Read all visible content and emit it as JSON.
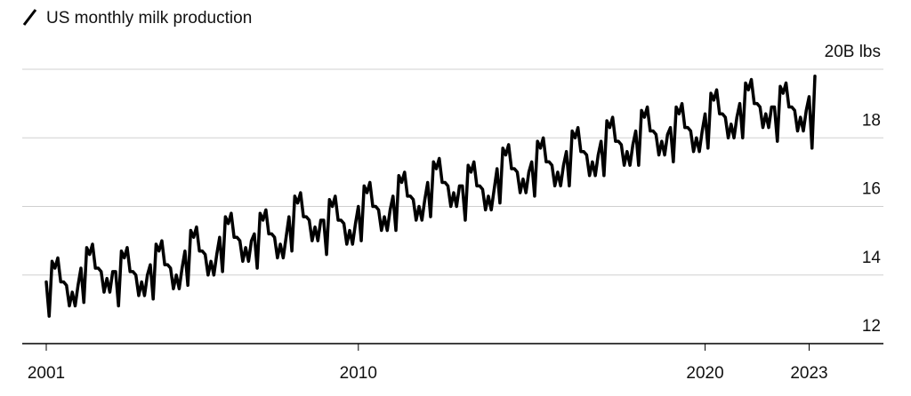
{
  "chart_data": {
    "type": "line",
    "title": "US monthly milk production",
    "color": "#000000",
    "grid": true,
    "ylim": [
      12,
      20
    ],
    "yticks": [
      12,
      14,
      16,
      18,
      {
        "value": 20,
        "label": "20B lbs"
      }
    ],
    "categories": [
      "2001",
      null,
      null,
      null,
      null,
      null,
      null,
      null,
      null,
      null,
      null,
      null,
      null,
      null,
      null,
      null,
      null,
      null,
      null,
      null,
      null,
      null,
      null,
      null,
      null,
      null,
      null,
      null,
      null,
      null,
      null,
      null,
      null,
      null,
      null,
      null,
      null,
      null,
      null,
      null,
      null,
      null,
      null,
      null,
      null,
      null,
      null,
      null,
      null,
      null,
      null,
      null,
      null,
      null,
      null,
      null,
      null,
      null,
      null,
      null,
      null,
      null,
      null,
      null,
      null,
      null,
      null,
      null,
      null,
      null,
      null,
      null,
      null,
      null,
      null,
      null,
      null,
      null,
      null,
      null,
      null,
      null,
      null,
      null,
      null,
      null,
      null,
      null,
      null,
      null,
      null,
      null,
      null,
      null,
      null,
      null,
      null,
      null,
      null,
      null,
      null,
      null,
      null,
      null,
      null,
      null,
      null,
      null,
      "2010",
      null,
      null,
      null,
      null,
      null,
      null,
      null,
      null,
      null,
      null,
      null,
      null,
      null,
      null,
      null,
      null,
      null,
      null,
      null,
      null,
      null,
      null,
      null,
      null,
      null,
      null,
      null,
      null,
      null,
      null,
      null,
      null,
      null,
      null,
      null,
      null,
      null,
      null,
      null,
      null,
      null,
      null,
      null,
      null,
      null,
      null,
      null,
      null,
      null,
      null,
      null,
      null,
      null,
      null,
      null,
      null,
      null,
      null,
      null,
      null,
      null,
      null,
      null,
      null,
      null,
      null,
      null,
      null,
      null,
      null,
      null,
      null,
      null,
      null,
      null,
      null,
      null,
      null,
      null,
      null,
      null,
      null,
      null,
      null,
      null,
      null,
      null,
      null,
      null,
      null,
      null,
      null,
      null,
      null,
      null,
      null,
      null,
      null,
      null,
      null,
      null,
      null,
      null,
      null,
      null,
      null,
      null,
      null,
      null,
      null,
      null,
      null,
      null,
      null,
      null,
      null,
      null,
      null,
      null,
      "2020",
      null,
      null,
      null,
      null,
      null,
      null,
      null,
      null,
      null,
      null,
      null,
      null,
      null,
      null,
      null,
      null,
      null,
      null,
      null,
      null,
      null,
      null,
      null,
      null,
      null,
      null,
      null,
      null,
      null,
      null,
      null,
      null,
      null,
      null,
      null,
      "2023",
      null,
      null
    ],
    "values": [
      13.8,
      12.8,
      14.4,
      14.2,
      14.5,
      13.8,
      13.8,
      13.7,
      13.1,
      13.5,
      13.1,
      13.7,
      14.2,
      13.2,
      14.8,
      14.6,
      14.9,
      14.2,
      14.2,
      14.1,
      13.5,
      13.9,
      13.5,
      14.1,
      14.1,
      13.1,
      14.7,
      14.5,
      14.8,
      14.1,
      14.1,
      14.0,
      13.4,
      13.8,
      13.4,
      14.0,
      14.3,
      13.3,
      14.9,
      14.7,
      15.0,
      14.3,
      14.3,
      14.2,
      13.6,
      14.0,
      13.6,
      14.2,
      14.7,
      13.7,
      15.3,
      15.1,
      15.4,
      14.7,
      14.7,
      14.6,
      14.0,
      14.4,
      14.0,
      14.6,
      15.1,
      14.1,
      15.7,
      15.5,
      15.8,
      15.1,
      15.1,
      15.0,
      14.4,
      14.8,
      14.4,
      15.0,
      15.2,
      14.2,
      15.8,
      15.6,
      15.9,
      15.2,
      15.2,
      15.1,
      14.5,
      14.9,
      14.5,
      15.1,
      15.7,
      14.7,
      16.3,
      16.1,
      16.4,
      15.7,
      15.7,
      15.6,
      15.0,
      15.4,
      15.0,
      15.6,
      15.6,
      14.6,
      16.2,
      16.0,
      16.3,
      15.6,
      15.6,
      15.5,
      14.9,
      15.3,
      14.9,
      15.5,
      16.0,
      15.0,
      16.6,
      16.4,
      16.7,
      16.0,
      16.0,
      15.9,
      15.3,
      15.7,
      15.3,
      15.9,
      16.3,
      15.3,
      16.9,
      16.7,
      17.0,
      16.3,
      16.3,
      16.2,
      15.6,
      16.0,
      15.6,
      16.2,
      16.7,
      15.7,
      17.3,
      17.1,
      17.4,
      16.7,
      16.7,
      16.6,
      16.0,
      16.4,
      16.0,
      16.6,
      16.6,
      15.6,
      17.2,
      17.0,
      17.3,
      16.6,
      16.6,
      16.5,
      15.9,
      16.3,
      15.9,
      16.5,
      17.1,
      16.1,
      17.7,
      17.5,
      17.8,
      17.1,
      17.1,
      17.0,
      16.4,
      16.8,
      16.4,
      17.0,
      17.3,
      16.3,
      17.9,
      17.7,
      18.0,
      17.3,
      17.3,
      17.2,
      16.6,
      17.0,
      16.6,
      17.2,
      17.6,
      16.6,
      18.2,
      18.0,
      18.3,
      17.6,
      17.6,
      17.5,
      16.9,
      17.3,
      16.9,
      17.5,
      17.9,
      16.9,
      18.5,
      18.3,
      18.6,
      17.9,
      17.9,
      17.8,
      17.2,
      17.6,
      17.2,
      17.8,
      18.2,
      17.2,
      18.8,
      18.6,
      18.9,
      18.2,
      18.2,
      18.1,
      17.5,
      17.9,
      17.5,
      18.1,
      18.3,
      17.3,
      18.9,
      18.7,
      19.0,
      18.3,
      18.3,
      18.2,
      17.6,
      18.0,
      17.6,
      18.2,
      18.7,
      17.7,
      19.3,
      19.1,
      19.4,
      18.7,
      18.7,
      18.6,
      18.0,
      18.4,
      18.0,
      18.6,
      19.0,
      18.0,
      19.6,
      19.4,
      19.7,
      19.0,
      19.0,
      18.9,
      18.3,
      18.7,
      18.3,
      18.9,
      18.9,
      17.9,
      19.5,
      19.3,
      19.6,
      18.9,
      18.9,
      18.8,
      18.2,
      18.6,
      18.2,
      18.8,
      19.2,
      17.7,
      19.8
    ]
  }
}
